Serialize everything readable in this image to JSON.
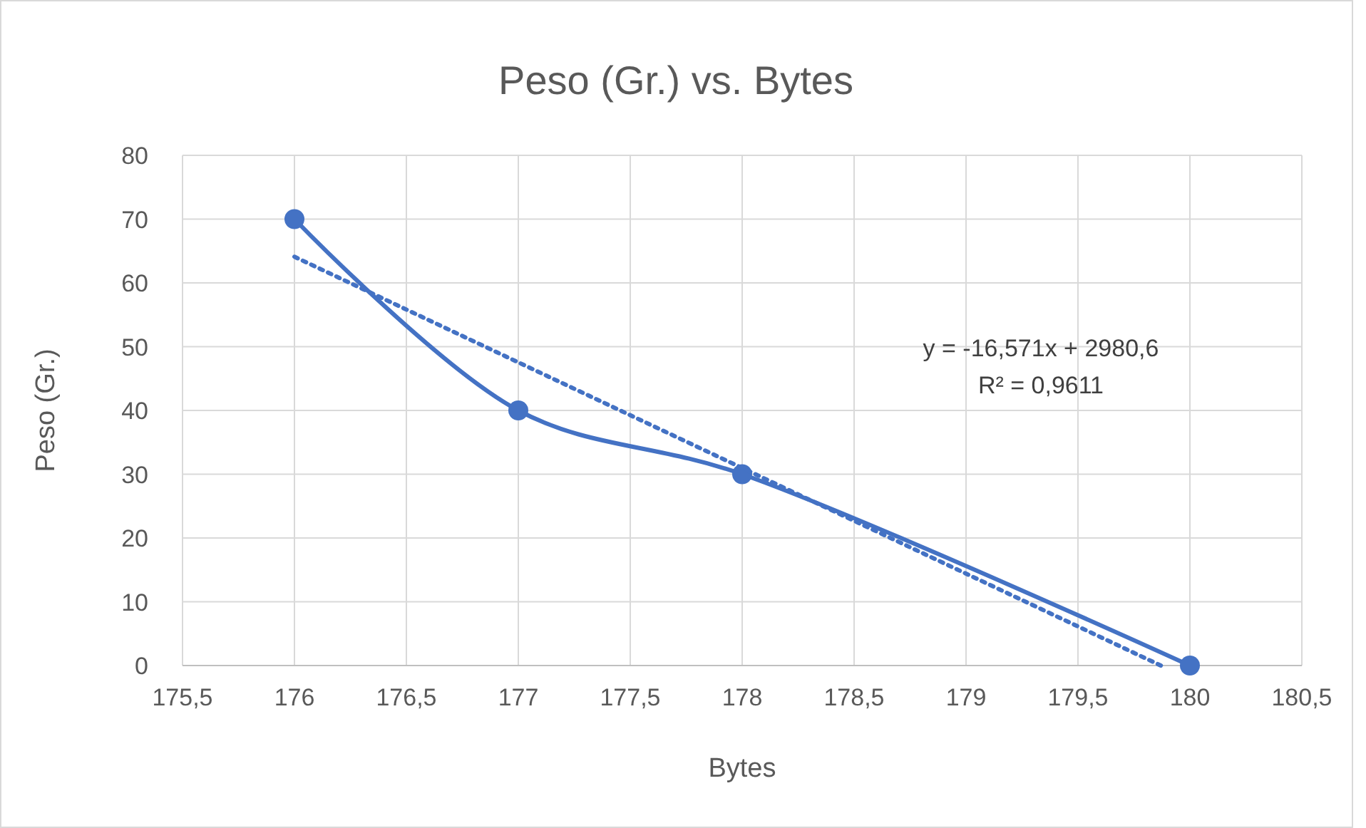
{
  "chart_data": {
    "type": "line",
    "title": "Peso (Gr.) vs. Bytes",
    "xlabel": "Bytes",
    "ylabel": "Peso (Gr.)",
    "xlim": [
      175.5,
      180.5
    ],
    "xticks": [
      {
        "value": 175.5,
        "label": "175,5"
      },
      176,
      {
        "value": 176.5,
        "label": "176,5"
      },
      177,
      {
        "value": 177.5,
        "label": "177,5"
      },
      178,
      {
        "value": 178.5,
        "label": "178,5"
      },
      179,
      {
        "value": 179.5,
        "label": "179,5"
      },
      180,
      {
        "value": 180.5,
        "label": "180,5"
      }
    ],
    "ylim": [
      0,
      80
    ],
    "yticks": [
      0,
      10,
      20,
      30,
      40,
      50,
      60,
      70,
      80
    ],
    "grid": true,
    "series": [
      {
        "color": "#4472c4",
        "x": [
          176,
          177,
          178,
          180
        ],
        "values": [
          70,
          40,
          30,
          0
        ],
        "marker": "circle",
        "line_style": "solid"
      },
      {
        "color": "#4472c4",
        "x": [
          176,
          179.87
        ],
        "values": [
          64.1,
          0
        ],
        "marker": "none",
        "line_style": "dotted"
      }
    ],
    "annotations": [
      "y = -16,571x + 2980,6",
      "R² = 0,9611"
    ]
  }
}
